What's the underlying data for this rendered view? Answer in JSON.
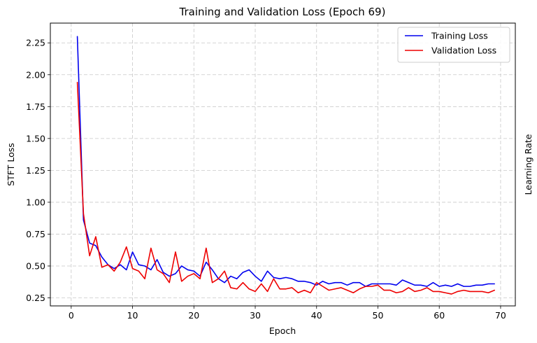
{
  "chart_data": {
    "type": "line",
    "title": "Training and Validation Loss (Epoch 69)",
    "xlabel": "Epoch",
    "ylabel": "STFT Loss",
    "y2label": "Learning Rate",
    "xlim": [
      -3.4,
      72.4
    ],
    "ylim": [
      0.187,
      2.405
    ],
    "xticks": [
      0,
      10,
      20,
      30,
      40,
      50,
      60,
      70
    ],
    "yticks": [
      0.25,
      0.5,
      0.75,
      1.0,
      1.25,
      1.5,
      1.75,
      2.0,
      2.25
    ],
    "ytick_labels": [
      "0.25",
      "0.50",
      "0.75",
      "1.00",
      "1.25",
      "1.50",
      "1.75",
      "2.00",
      "2.25"
    ],
    "grid": true,
    "legend_position": "top-right",
    "x": [
      1,
      2,
      3,
      4,
      5,
      6,
      7,
      8,
      9,
      10,
      11,
      12,
      13,
      14,
      15,
      16,
      17,
      18,
      19,
      20,
      21,
      22,
      23,
      24,
      25,
      26,
      27,
      28,
      29,
      30,
      31,
      32,
      33,
      34,
      35,
      36,
      37,
      38,
      39,
      40,
      41,
      42,
      43,
      44,
      45,
      46,
      47,
      48,
      49,
      50,
      51,
      52,
      53,
      54,
      55,
      56,
      57,
      58,
      59,
      60,
      61,
      62,
      63,
      64,
      65,
      66,
      67,
      68,
      69
    ],
    "series": [
      {
        "name": "Training Loss",
        "color": "#0000ee",
        "values": [
          2.3,
          0.86,
          0.68,
          0.66,
          0.57,
          0.51,
          0.48,
          0.51,
          0.47,
          0.61,
          0.51,
          0.5,
          0.47,
          0.55,
          0.45,
          0.42,
          0.44,
          0.5,
          0.47,
          0.46,
          0.42,
          0.53,
          0.47,
          0.4,
          0.37,
          0.42,
          0.4,
          0.45,
          0.47,
          0.42,
          0.38,
          0.46,
          0.41,
          0.4,
          0.41,
          0.4,
          0.38,
          0.38,
          0.37,
          0.35,
          0.38,
          0.36,
          0.37,
          0.37,
          0.35,
          0.37,
          0.37,
          0.34,
          0.36,
          0.36,
          0.36,
          0.36,
          0.35,
          0.39,
          0.37,
          0.35,
          0.35,
          0.34,
          0.37,
          0.34,
          0.35,
          0.34,
          0.36,
          0.34,
          0.34,
          0.35,
          0.35,
          0.36,
          0.36
        ]
      },
      {
        "name": "Validation Loss",
        "color": "#ee0000",
        "values": [
          1.94,
          0.91,
          0.58,
          0.73,
          0.49,
          0.51,
          0.46,
          0.53,
          0.65,
          0.48,
          0.46,
          0.4,
          0.64,
          0.47,
          0.44,
          0.37,
          0.61,
          0.38,
          0.42,
          0.44,
          0.4,
          0.64,
          0.37,
          0.4,
          0.46,
          0.33,
          0.32,
          0.37,
          0.32,
          0.3,
          0.36,
          0.3,
          0.4,
          0.32,
          0.32,
          0.33,
          0.29,
          0.31,
          0.29,
          0.37,
          0.34,
          0.31,
          0.32,
          0.33,
          0.31,
          0.29,
          0.32,
          0.34,
          0.34,
          0.35,
          0.31,
          0.31,
          0.29,
          0.3,
          0.33,
          0.3,
          0.31,
          0.33,
          0.3,
          0.3,
          0.29,
          0.28,
          0.3,
          0.31,
          0.3,
          0.3,
          0.3,
          0.29,
          0.31
        ]
      }
    ]
  }
}
